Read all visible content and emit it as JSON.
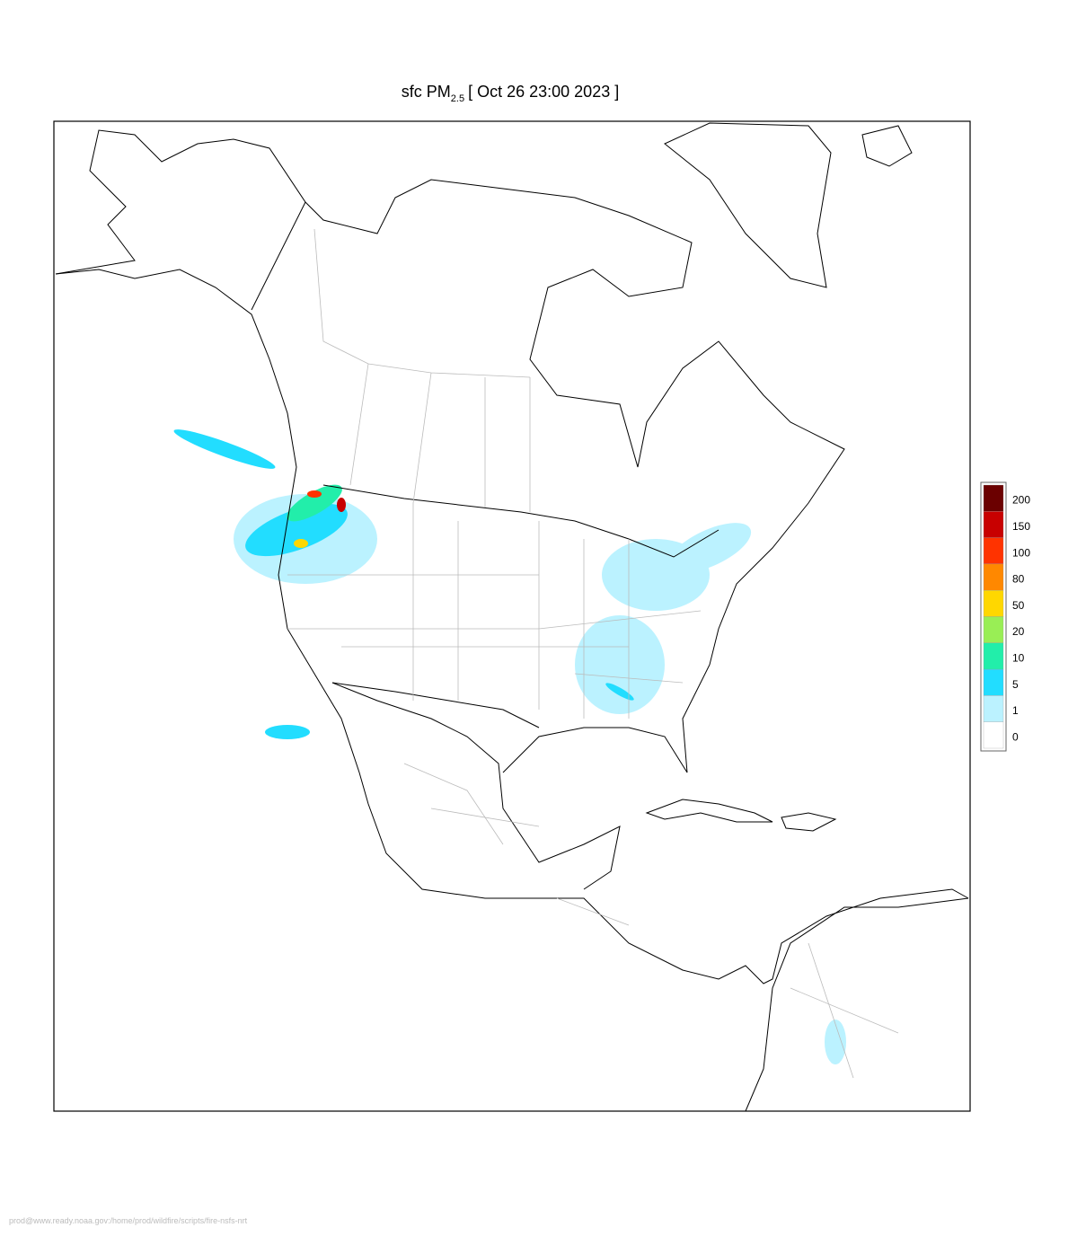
{
  "title": {
    "main": "sfc PM",
    "subscript": "2.5",
    "rest": "[ Oct 26 23:00 2023 ]"
  },
  "legend": {
    "levels": [
      200,
      150,
      100,
      80,
      50,
      20,
      10,
      5,
      1,
      0
    ],
    "colors": [
      "#6b0000",
      "#c80000",
      "#ff3300",
      "#ff8800",
      "#ffd700",
      "#99ee55",
      "#22eeaa",
      "#22ddff",
      "#bbf2ff",
      "#ffffff"
    ]
  },
  "footer": "prod@www.ready.noaa.gov:/home/prod/wildfire/scripts/fire-nsfs-nrt"
}
